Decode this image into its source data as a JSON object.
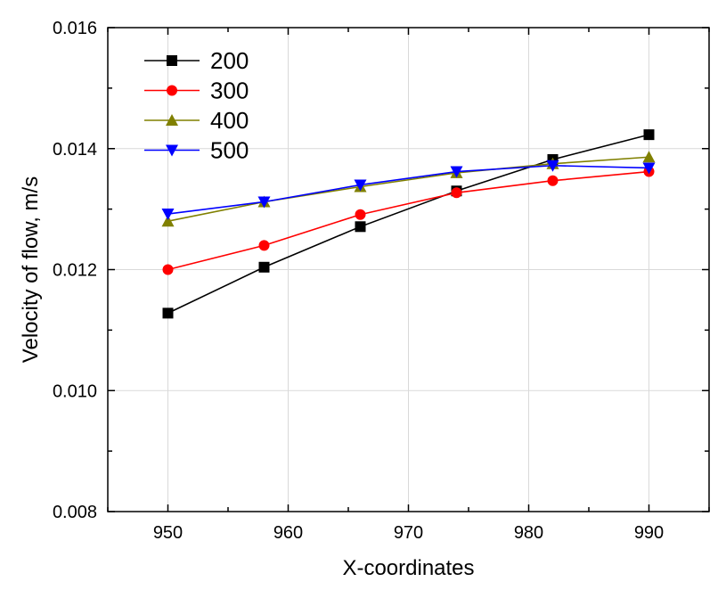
{
  "chart_data": {
    "type": "line",
    "xlabel": "X-coordinates",
    "ylabel": "Velocity of flow, m/s",
    "xlim": [
      945,
      995
    ],
    "ylim": [
      0.008,
      0.016
    ],
    "xticks": [
      950,
      960,
      970,
      980,
      990
    ],
    "xtick_labels": [
      "950",
      "960",
      "970",
      "980",
      "990"
    ],
    "yticks": [
      0.008,
      0.01,
      0.012,
      0.014,
      0.016
    ],
    "ytick_labels": [
      "0.008",
      "0.010",
      "0.012",
      "0.014",
      "0.016"
    ],
    "grid": true,
    "legend_position": "top-left",
    "x": [
      950,
      958,
      966,
      974,
      982,
      990
    ],
    "series": [
      {
        "name": "200",
        "color": "#000000",
        "marker": "square",
        "values": [
          0.01128,
          0.01204,
          0.01271,
          0.0133,
          0.01382,
          0.01423
        ]
      },
      {
        "name": "300",
        "color": "#ff0000",
        "marker": "circle",
        "values": [
          0.012,
          0.0124,
          0.01291,
          0.01327,
          0.01347,
          0.01362
        ]
      },
      {
        "name": "400",
        "color": "#808000",
        "marker": "triangle-up",
        "values": [
          0.0128,
          0.01312,
          0.01337,
          0.0136,
          0.01375,
          0.01386
        ]
      },
      {
        "name": "500",
        "color": "#0000ff",
        "marker": "triangle-down",
        "values": [
          0.01292,
          0.01312,
          0.0134,
          0.01362,
          0.01372,
          0.01368
        ]
      }
    ]
  }
}
